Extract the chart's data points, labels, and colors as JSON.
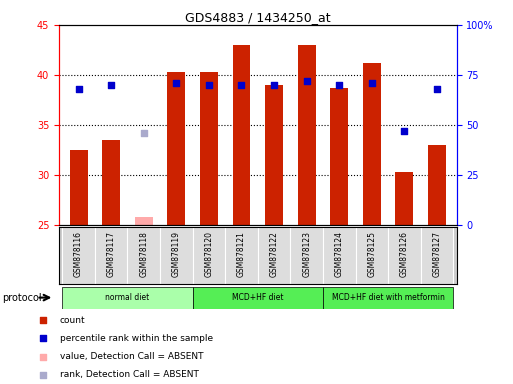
{
  "title": "GDS4883 / 1434250_at",
  "samples": [
    "GSM878116",
    "GSM878117",
    "GSM878118",
    "GSM878119",
    "GSM878120",
    "GSM878121",
    "GSM878122",
    "GSM878123",
    "GSM878124",
    "GSM878125",
    "GSM878126",
    "GSM878127"
  ],
  "bar_values": [
    32.5,
    33.5,
    25.8,
    40.3,
    40.3,
    43.0,
    39.0,
    43.0,
    38.7,
    41.2,
    30.3,
    33.0
  ],
  "bar_absent": [
    false,
    false,
    true,
    false,
    false,
    false,
    false,
    false,
    false,
    false,
    false,
    false
  ],
  "percentile_values_pct": [
    68,
    70,
    46,
    71,
    70,
    70,
    70,
    72,
    70,
    71,
    47,
    68
  ],
  "percentile_absent": [
    false,
    false,
    true,
    false,
    false,
    false,
    false,
    false,
    false,
    false,
    false,
    false
  ],
  "bar_color_present": "#cc2200",
  "bar_color_absent": "#ffaaaa",
  "dot_color_present": "#0000cc",
  "dot_color_absent": "#aaaacc",
  "ylim_left": [
    25,
    45
  ],
  "ylim_right": [
    0,
    100
  ],
  "yticks_left": [
    25,
    30,
    35,
    40,
    45
  ],
  "yticks_right": [
    0,
    25,
    50,
    75,
    100
  ],
  "yticklabels_right": [
    "0",
    "25",
    "50",
    "75",
    "100%"
  ],
  "protocol_groups": [
    {
      "label": "normal diet",
      "start": 0,
      "end": 3,
      "color": "#aaffaa"
    },
    {
      "label": "MCD+HF diet",
      "start": 4,
      "end": 7,
      "color": "#55ee55"
    },
    {
      "label": "MCD+HF diet with metformin",
      "start": 8,
      "end": 11,
      "color": "#55ee55"
    }
  ],
  "protocol_label": "protocol",
  "legend_items": [
    {
      "label": "count",
      "color": "#cc2200"
    },
    {
      "label": "percentile rank within the sample",
      "color": "#0000cc"
    },
    {
      "label": "value, Detection Call = ABSENT",
      "color": "#ffaaaa"
    },
    {
      "label": "rank, Detection Call = ABSENT",
      "color": "#aaaacc"
    }
  ],
  "bar_width": 0.55,
  "dot_size": 25,
  "background_color": "#ffffff"
}
